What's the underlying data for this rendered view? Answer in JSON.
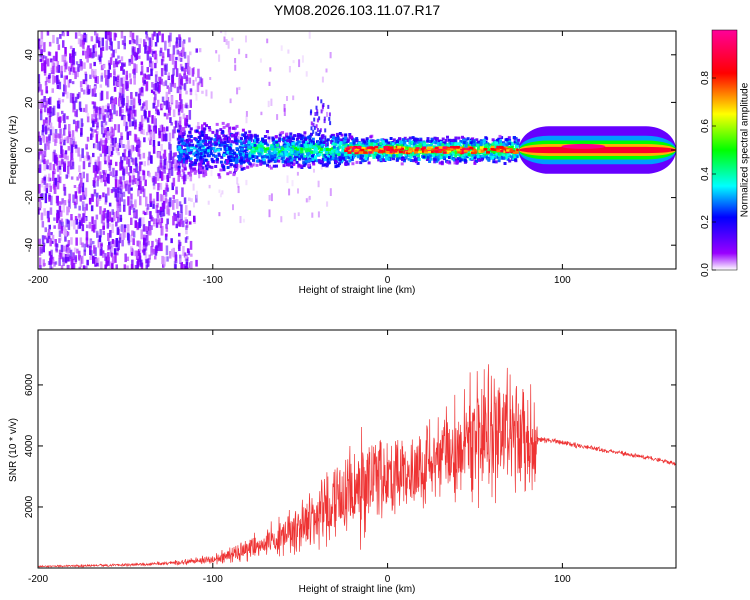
{
  "chart_data": [
    {
      "type": "heatmap",
      "title": "YM08.2026.103.11.07.R17",
      "xlabel": "Height of straight line (km)",
      "ylabel": "Frequency (Hz)",
      "xlim": [
        -200,
        165
      ],
      "ylim": [
        -50,
        50
      ],
      "xticks": [
        -200,
        -100,
        0,
        100
      ],
      "yticks": [
        -40,
        -20,
        0,
        20,
        40
      ],
      "colorbar": {
        "label": "Normalized spectral amplitude",
        "range": [
          0,
          1
        ],
        "ticks": [
          "0.0",
          "0.2",
          "0.4",
          "0.6",
          "0.8"
        ],
        "stops": [
          "#ffffff",
          "#9900ff",
          "#0000ff",
          "#00ffff",
          "#00ff00",
          "#ffff00",
          "#ff0000",
          "#ff0099"
        ]
      },
      "regions": [
        {
          "name": "noise",
          "x": [
            -200,
            -112
          ],
          "amplitude": 0.1
        },
        {
          "name": "onset",
          "x": [
            -120,
            -80
          ],
          "amplitude": 0.35
        },
        {
          "name": "track",
          "x": [
            -80,
            75
          ],
          "amplitude": 0.55
        },
        {
          "name": "peak-track",
          "x": [
            -20,
            75
          ],
          "amplitude": 0.9
        },
        {
          "name": "smooth",
          "x": [
            75,
            165
          ],
          "amplitude": 0.85
        }
      ],
      "features": [
        {
          "name": "burst",
          "x": -38,
          "y": 20
        }
      ]
    },
    {
      "type": "line",
      "series": [
        {
          "name": "SNR",
          "color": "#ee3333",
          "x": [
            -200,
            -150,
            -125,
            -110,
            -100,
            -90,
            -80,
            -70,
            -60,
            -50,
            -40,
            -30,
            -20,
            -15,
            -10,
            0,
            10,
            20,
            30,
            40,
            47,
            55,
            62,
            70,
            78,
            84,
            86,
            90,
            100,
            110,
            120,
            130,
            140,
            150,
            160,
            165
          ],
          "mean": [
            50,
            100,
            150,
            220,
            300,
            430,
            620,
            800,
            1100,
            1350,
            1700,
            2100,
            2400,
            2700,
            2850,
            3000,
            3150,
            3350,
            3600,
            3850,
            4100,
            4300,
            4350,
            4300,
            4150,
            3950,
            4200,
            4200,
            4100,
            4000,
            3900,
            3800,
            3700,
            3600,
            3480,
            3400
          ],
          "amp": [
            30,
            50,
            80,
            150,
            220,
            300,
            430,
            600,
            800,
            1100,
            1400,
            1700,
            1900,
            2200,
            1900,
            1500,
            1500,
            1600,
            1800,
            2100,
            2400,
            2600,
            2800,
            2600,
            2300,
            2000,
            120,
            110,
            100,
            100,
            95,
            90,
            90,
            85,
            80,
            80
          ]
        }
      ],
      "xlabel": "Height of straight line (km)",
      "ylabel": "SNR (10 * v/v)",
      "xlim": [
        -200,
        165
      ],
      "ylim": [
        0,
        7800
      ],
      "xticks": [
        -200,
        -100,
        0,
        100
      ],
      "yticks": [
        2000,
        4000,
        6000
      ]
    }
  ]
}
